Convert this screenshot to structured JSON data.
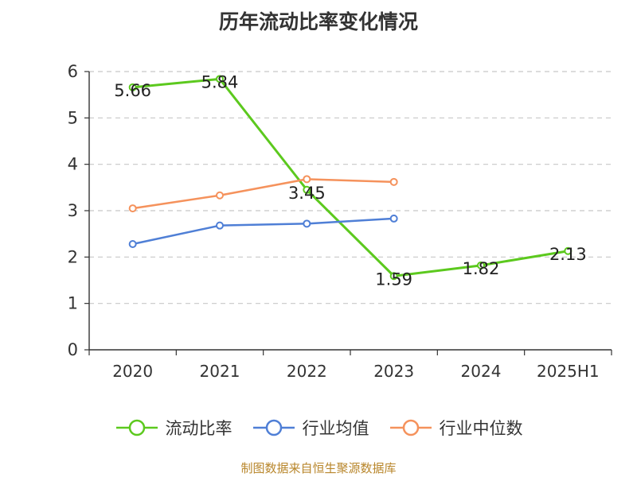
{
  "chart_data": {
    "type": "line",
    "title": "历年流动比率变化情况",
    "categories": [
      "2020",
      "2021",
      "2022",
      "2023",
      "2024",
      "2025H1"
    ],
    "ylim": [
      0,
      6
    ],
    "yticks": [
      0,
      1,
      2,
      3,
      4,
      5,
      6
    ],
    "grid": true,
    "legend_position": "bottom",
    "series": [
      {
        "name": "流动比率",
        "color": "#5cc91e",
        "values": [
          5.66,
          5.84,
          3.45,
          1.59,
          1.82,
          2.13
        ],
        "labels": [
          "5.66",
          "5.84",
          "3.45",
          "1.59",
          "1.82",
          "2.13"
        ]
      },
      {
        "name": "行业均值",
        "color": "#4f7fd6",
        "values": [
          2.28,
          2.68,
          2.72,
          2.83,
          null,
          null
        ]
      },
      {
        "name": "行业中位数",
        "color": "#f5925c",
        "values": [
          3.05,
          3.33,
          3.68,
          3.62,
          null,
          null
        ]
      }
    ]
  },
  "source": "制图数据来自恒生聚源数据库"
}
